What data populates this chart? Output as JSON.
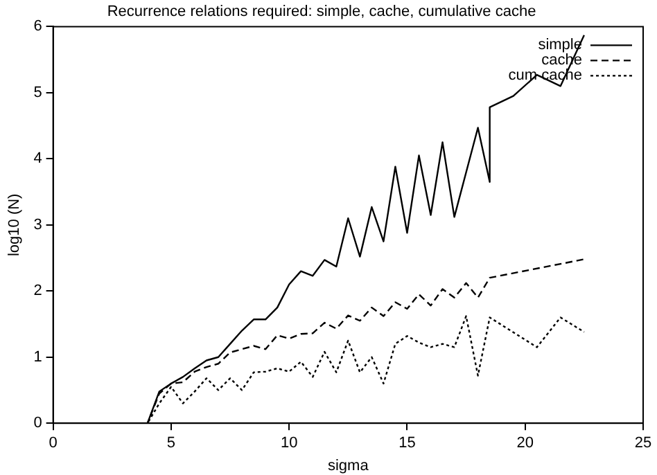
{
  "chart_data": {
    "type": "line",
    "title": "Recurrence relations required: simple, cache, cumulative cache",
    "xlabel": "sigma",
    "ylabel": "log10 (N)",
    "xlim": [
      0,
      25
    ],
    "xticks": [
      0,
      5,
      10,
      15,
      20,
      25
    ],
    "ylim": [
      0,
      6
    ],
    "yticks": [
      0,
      1,
      2,
      3,
      4,
      5,
      6
    ],
    "grid": false,
    "legend": "top right",
    "marker": "none",
    "series": [
      {
        "name": "simple",
        "color": "#000000",
        "line_style": "solid",
        "x": [
          1.5,
          4,
          4.5,
          5,
          5.5,
          6,
          6.5,
          7,
          7.5,
          8,
          8.5,
          9,
          9.5,
          10,
          10.5,
          11,
          11.5,
          12,
          12.5,
          13,
          13.5,
          14,
          14.5,
          15,
          15.5,
          16,
          16.5,
          17,
          18,
          18.5,
          18.5,
          19.5,
          20.5,
          21.5,
          22.5
        ],
        "values": [
          0,
          0,
          0.48,
          0.6,
          0.7,
          0.83,
          0.95,
          1.0,
          1.2,
          1.4,
          1.57,
          1.57,
          1.75,
          2.1,
          2.3,
          2.23,
          2.47,
          2.37,
          3.1,
          2.52,
          3.27,
          2.75,
          3.88,
          2.88,
          4.05,
          3.15,
          4.25,
          3.12,
          4.47,
          3.65,
          4.78,
          4.95,
          5.27,
          5.1,
          5.87
        ]
      },
      {
        "name": "cache",
        "color": "#000000",
        "line_style": "dashed",
        "x": [
          1.5,
          4,
          4.5,
          5,
          5.5,
          6,
          6.5,
          7,
          7.5,
          8,
          8.5,
          9,
          9.5,
          10,
          10.5,
          11,
          11.5,
          12,
          12.5,
          13,
          13.5,
          14,
          14.5,
          15,
          15.5,
          16,
          16.5,
          17,
          17.5,
          18,
          18.5,
          22.5
        ],
        "values": [
          0,
          0,
          0.45,
          0.6,
          0.62,
          0.78,
          0.85,
          0.9,
          1.07,
          1.12,
          1.17,
          1.12,
          1.33,
          1.28,
          1.35,
          1.36,
          1.52,
          1.43,
          1.63,
          1.55,
          1.75,
          1.62,
          1.83,
          1.73,
          1.95,
          1.78,
          2.03,
          1.9,
          2.12,
          1.9,
          2.2,
          2.48
        ]
      },
      {
        "name": "cum cache",
        "color": "#000000",
        "line_style": "dotted",
        "x": [
          1.5,
          4,
          4.5,
          5,
          5.5,
          6,
          6.5,
          7,
          7.5,
          8,
          8.5,
          9,
          9.5,
          10,
          10.5,
          11,
          11.5,
          12,
          12.5,
          13,
          13.5,
          14,
          14.5,
          15,
          15.5,
          16,
          16.5,
          17,
          17.5,
          18,
          18.5,
          20.5,
          21.5,
          22.5
        ],
        "values": [
          0,
          0,
          0.3,
          0.55,
          0.3,
          0.48,
          0.68,
          0.5,
          0.68,
          0.5,
          0.77,
          0.78,
          0.83,
          0.78,
          0.93,
          0.7,
          1.08,
          0.77,
          1.25,
          0.77,
          1.0,
          0.6,
          1.2,
          1.32,
          1.22,
          1.15,
          1.2,
          1.15,
          1.62,
          0.72,
          1.6,
          1.15,
          1.6,
          1.38
        ]
      }
    ]
  }
}
